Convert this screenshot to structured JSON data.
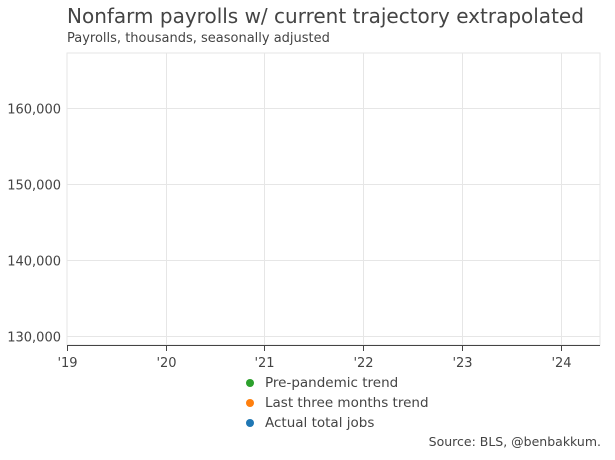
{
  "chart_data": {
    "type": "line",
    "title": "Nonfarm payrolls w/ current trajectory extrapolated",
    "subtitle": "Payrolls, thousands, seasonally adjusted",
    "xlabel": "",
    "ylabel": "",
    "x_ticks": [
      "'19",
      "'20",
      "'21",
      "'22",
      "'23",
      "'24"
    ],
    "x_tick_years": [
      2019,
      2020,
      2021,
      2022,
      2023,
      2024
    ],
    "xlim": [
      2019,
      2024.4
    ],
    "y_ticks": [
      130000,
      140000,
      150000,
      160000
    ],
    "y_tick_labels": [
      "130,000",
      "140,000",
      "150,000",
      "160,000"
    ],
    "ylim": [
      128800,
      167200
    ],
    "grid": true,
    "legend_position": "bottom-center",
    "series": [
      {
        "name": "Pre-pandemic trend",
        "color": "#2ca02c",
        "values": []
      },
      {
        "name": "Last three months trend",
        "color": "#ff7f0e",
        "values": []
      },
      {
        "name": "Actual total jobs",
        "color": "#1f77b4",
        "values": []
      }
    ],
    "source": "Source: BLS, @benbakkum."
  }
}
